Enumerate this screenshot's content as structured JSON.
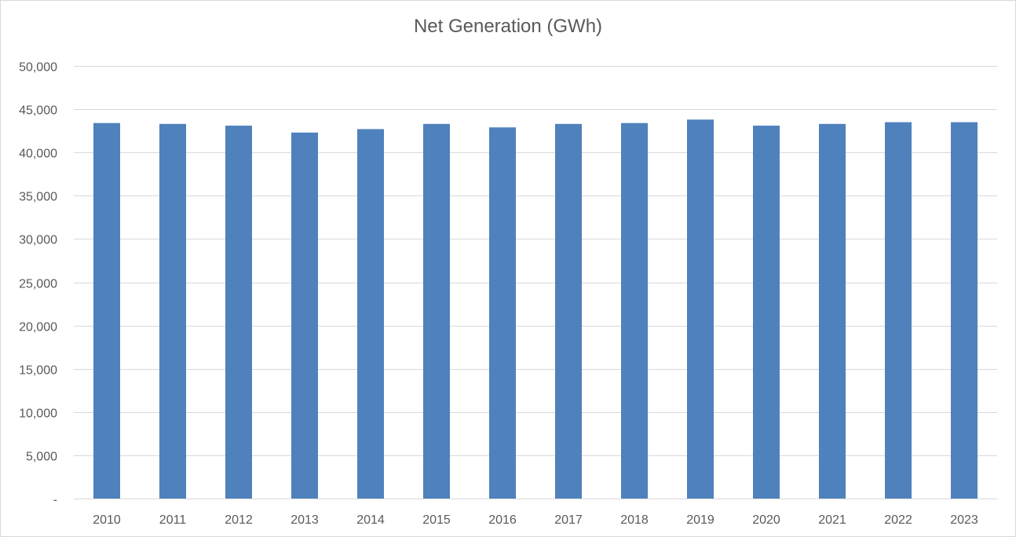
{
  "chart_data": {
    "type": "bar",
    "title": "Net Generation (GWh)",
    "xlabel": "",
    "ylabel": "",
    "categories": [
      "2010",
      "2011",
      "2012",
      "2013",
      "2014",
      "2015",
      "2016",
      "2017",
      "2018",
      "2019",
      "2020",
      "2021",
      "2022",
      "2023"
    ],
    "series": [
      {
        "values": [
          43400,
          43300,
          43100,
          42300,
          42700,
          43300,
          42900,
          43300,
          43400,
          43800,
          43100,
          43300,
          43500,
          43500
        ],
        "color": "#4f81bd"
      }
    ],
    "ylim": [
      0,
      50000
    ],
    "yticks": [
      0,
      5000,
      10000,
      15000,
      20000,
      25000,
      30000,
      35000,
      40000,
      45000,
      50000
    ],
    "ytick_labels": [
      "-",
      "5,000",
      "10,000",
      "15,000",
      "20,000",
      "25,000",
      "30,000",
      "35,000",
      "40,000",
      "45,000",
      "50,000"
    ],
    "grid": true,
    "legend": "none"
  }
}
